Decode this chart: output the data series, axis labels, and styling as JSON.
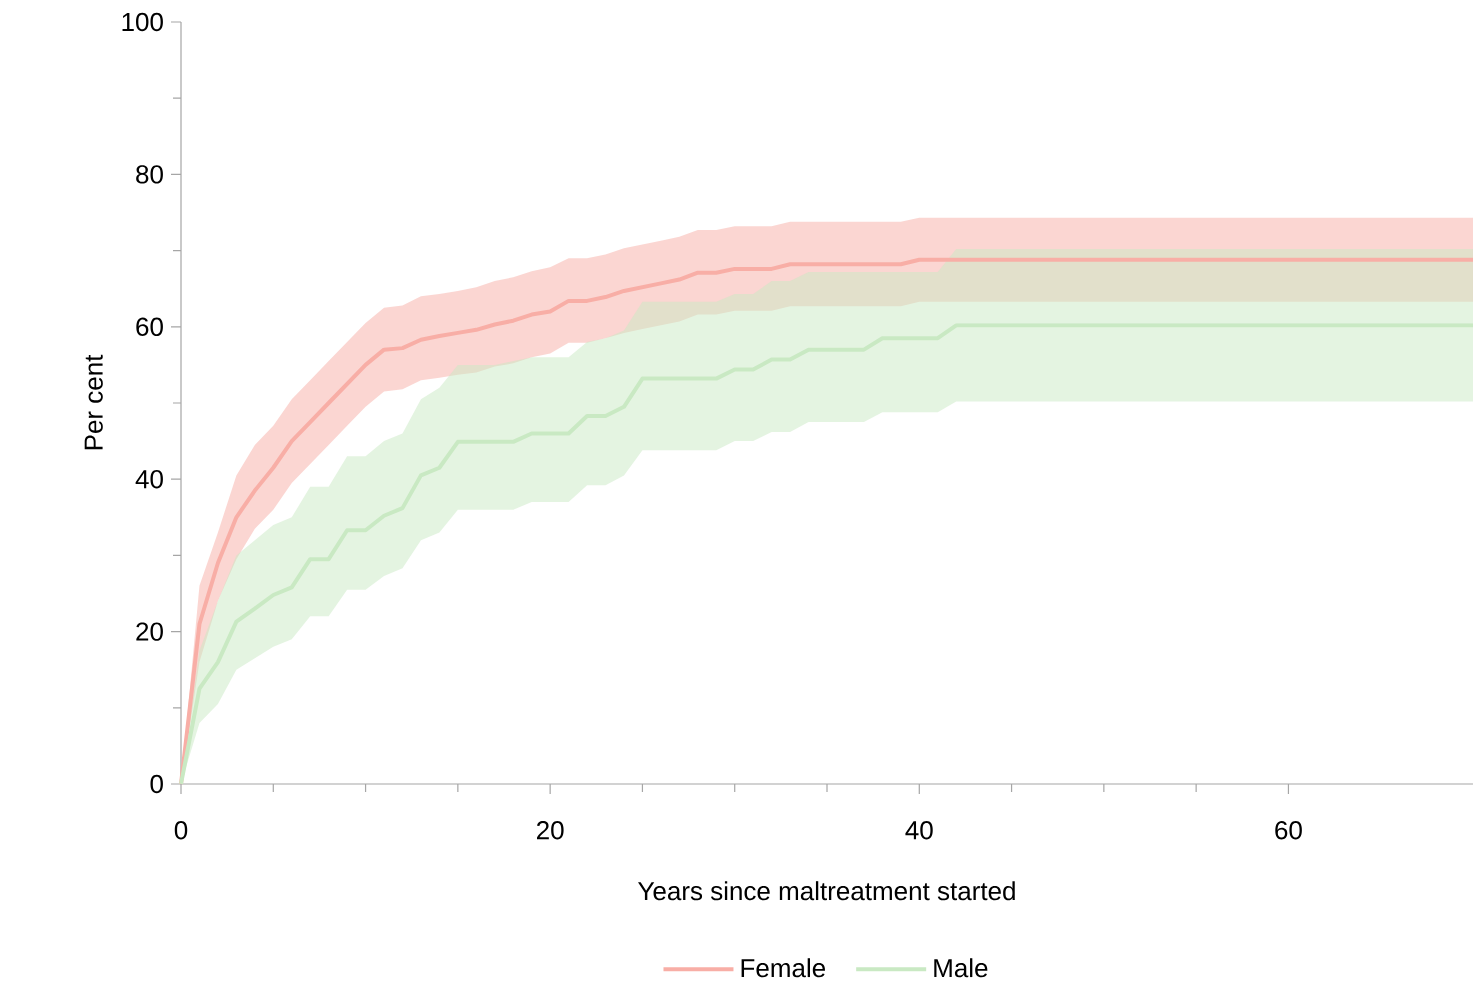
{
  "chart_data": {
    "type": "line",
    "xlabel": "Years since maltreatment started",
    "ylabel": "Per cent",
    "x": [
      0,
      1,
      2,
      3,
      4,
      5,
      6,
      7,
      8,
      9,
      10,
      11,
      12,
      13,
      14,
      15,
      16,
      17,
      18,
      19,
      20,
      21,
      22,
      23,
      24,
      25,
      26,
      27,
      28,
      29,
      30,
      31,
      32,
      33,
      34,
      35,
      36,
      37,
      38,
      39,
      40,
      41,
      42,
      70
    ],
    "xlim": [
      0,
      70
    ],
    "xticks": [
      0,
      20,
      40,
      60
    ],
    "ylim": [
      0,
      100
    ],
    "yticks": [
      0,
      20,
      40,
      60,
      80,
      100
    ],
    "legend": "bottom",
    "marker": "none",
    "line_style": "solid",
    "series": [
      {
        "name": "Female",
        "color": "#f8aea6",
        "values": [
          0,
          21,
          29,
          35,
          38.5,
          41.5,
          45,
          47.5,
          50,
          52.5,
          55,
          57,
          57.2,
          58.3,
          58.8,
          59.2,
          59.6,
          60.3,
          60.8,
          61.6,
          62,
          63.4,
          63.4,
          63.9,
          64.7,
          65.2,
          65.7,
          66.2,
          67.1,
          67.1,
          67.6,
          67.6,
          67.6,
          68.2,
          68.2,
          68.2,
          68.2,
          68.2,
          68.2,
          68.2,
          68.8,
          68.8,
          68.8,
          68.8
        ],
        "upper": [
          0,
          26,
          33,
          40.5,
          44.5,
          47,
          50.5,
          53,
          55.5,
          58,
          60.5,
          62.5,
          62.8,
          64,
          64.3,
          64.7,
          65.2,
          66,
          66.5,
          67.3,
          67.8,
          69,
          69,
          69.5,
          70.3,
          70.8,
          71.3,
          71.8,
          72.7,
          72.7,
          73.2,
          73.2,
          73.2,
          73.8,
          73.8,
          73.8,
          73.8,
          73.8,
          73.8,
          73.8,
          74.3,
          74.3,
          74.3,
          74.3
        ],
        "lower": [
          0,
          16,
          24,
          29.5,
          33.5,
          36,
          39.5,
          42,
          44.5,
          47,
          49.5,
          51.5,
          51.8,
          53,
          53.3,
          53.7,
          54,
          54.8,
          55.2,
          56,
          56.5,
          57.9,
          57.9,
          58.5,
          59.2,
          59.7,
          60.2,
          60.7,
          61.6,
          61.6,
          62.1,
          62.1,
          62.1,
          62.7,
          62.7,
          62.7,
          62.7,
          62.7,
          62.7,
          62.7,
          63.3,
          63.3,
          63.3,
          63.3
        ]
      },
      {
        "name": "Male",
        "color": "#c9e9c3",
        "values": [
          0,
          12.5,
          16,
          21.3,
          23,
          24.8,
          25.8,
          29.5,
          29.5,
          33.3,
          33.3,
          35.2,
          36.2,
          40.5,
          41.5,
          44.9,
          44.9,
          44.9,
          44.9,
          46,
          46,
          46,
          48.3,
          48.3,
          49.5,
          53.2,
          53.2,
          53.2,
          53.2,
          53.2,
          54.4,
          54.4,
          55.7,
          55.7,
          57,
          57,
          57,
          57,
          58.5,
          58.5,
          58.5,
          58.5,
          60.2,
          60.2
        ],
        "upper": [
          0,
          17.5,
          24,
          30,
          32,
          34,
          35,
          39,
          39,
          43,
          43,
          45,
          46,
          50.5,
          52,
          55,
          55,
          55,
          55.5,
          56,
          56,
          56,
          58,
          58.5,
          59.5,
          63.3,
          63.3,
          63.3,
          63.3,
          63.3,
          64.3,
          64.3,
          66,
          66,
          67.2,
          67.2,
          67.2,
          67.2,
          67.2,
          67.2,
          67.2,
          67.2,
          70.2,
          70.2
        ],
        "lower": [
          0,
          8,
          10.5,
          15,
          16.5,
          18,
          19,
          22,
          22,
          25.5,
          25.5,
          27.3,
          28.3,
          32,
          33,
          36,
          36,
          36,
          36,
          37,
          37,
          37,
          39.2,
          39.2,
          40.5,
          43.8,
          43.8,
          43.8,
          43.8,
          43.8,
          45,
          45,
          46.2,
          46.2,
          47.5,
          47.5,
          47.5,
          47.5,
          48.8,
          48.8,
          48.8,
          48.8,
          50.2,
          50.2
        ]
      }
    ]
  }
}
